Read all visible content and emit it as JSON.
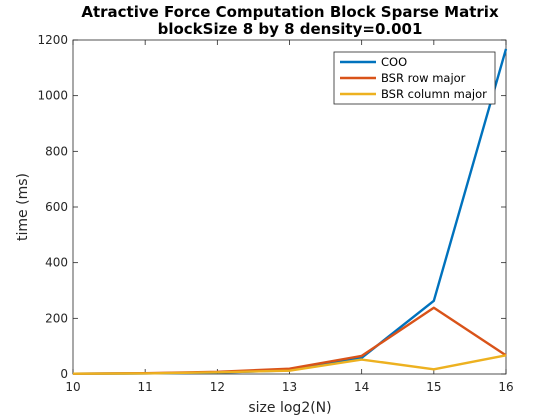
{
  "chart_data": {
    "type": "line",
    "title": [
      "Atractive Force Computation Block Sparse Matrix",
      "blockSize 8 by 8 density=0.001"
    ],
    "xlabel": "size log2(N)",
    "ylabel": "time (ms)",
    "xlim": [
      10,
      16
    ],
    "ylim": [
      0,
      1200
    ],
    "xticks": [
      10,
      11,
      12,
      13,
      14,
      15,
      16
    ],
    "yticks": [
      0,
      200,
      400,
      600,
      800,
      1000,
      1200
    ],
    "grid": false,
    "legend_position": "top-right",
    "x": [
      10,
      11,
      12,
      13,
      14,
      15,
      16
    ],
    "series": [
      {
        "name": "COO",
        "color": "#0072BD",
        "values": [
          1,
          2,
          5,
          13,
          58,
          263,
          1168
        ]
      },
      {
        "name": "BSR row major",
        "color": "#D95319",
        "values": [
          1,
          3,
          8,
          19,
          65,
          238,
          67
        ]
      },
      {
        "name": "BSR column major",
        "color": "#EDB120",
        "values": [
          1,
          2,
          6,
          12,
          52,
          17,
          67
        ]
      }
    ]
  }
}
